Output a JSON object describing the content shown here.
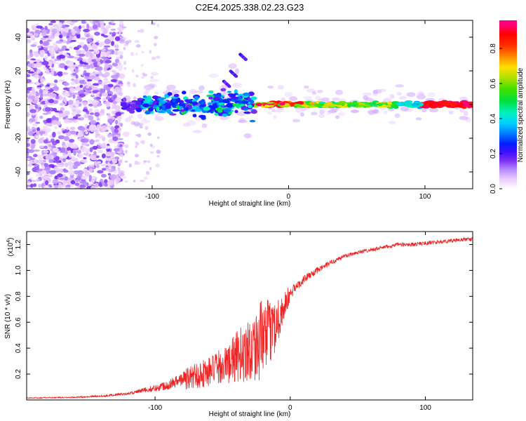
{
  "chart_data": [
    {
      "type": "heatmap",
      "title": "C2E4.2025.338.02.23.G23",
      "xlabel": "Height of straight line (km)",
      "ylabel": "Frequency (Hz)",
      "xlim": [
        -192,
        135
      ],
      "ylim": [
        -50,
        50
      ],
      "xticks": [
        "-100",
        "0",
        "100"
      ],
      "xtick_values": [
        -100,
        0,
        100
      ],
      "yticks": [
        "-40",
        "-20",
        "0",
        "20",
        "40"
      ],
      "ytick_values": [
        -40,
        -20,
        0,
        20,
        40
      ],
      "colorbar": {
        "label": "Normalized spectral amplitude",
        "range": [
          0,
          0.96
        ],
        "ticks": [
          "0.0",
          "0.2",
          "0.4",
          "0.6",
          "0.8"
        ],
        "tick_values": [
          0.0,
          0.2,
          0.4,
          0.6,
          0.8
        ],
        "colormap": [
          "#ffffff",
          "#e9c9ff",
          "#b080ff",
          "#7a2cf0",
          "#3a10ff",
          "#0020ff",
          "#0080ff",
          "#00d0ff",
          "#00f0c0",
          "#00e040",
          "#40e000",
          "#b0e000",
          "#ffe000",
          "#ff9000",
          "#ff3000",
          "#ff0000",
          "#ff0060",
          "#ff0090"
        ]
      },
      "features": [
        {
          "name": "noise region",
          "x_range": [
            -192,
            -122
          ],
          "freq_range": [
            -50,
            50
          ],
          "amplitude": 0.12
        },
        {
          "name": "signal band",
          "x_range": [
            -122,
            135
          ],
          "center_freq": 0
        },
        {
          "name": "upper streaks",
          "points": [
            [
              -45,
              12
            ],
            [
              -40,
              18
            ],
            [
              -33,
              28
            ]
          ]
        }
      ]
    },
    {
      "type": "line",
      "xlabel": "Height of straight line (km)",
      "ylabel": "SNR (10 * v/v)",
      "y_multiplier": "(x10",
      "y_multiplier_exp": "4",
      "y_multiplier_close": ")",
      "xlim": [
        -195,
        135
      ],
      "ylim": [
        0,
        1.3
      ],
      "xticks": [
        "-100",
        "0",
        "100"
      ],
      "xtick_values": [
        -100,
        0,
        100
      ],
      "yticks": [
        "0.2",
        "0.4",
        "0.6",
        "0.8",
        "1.0",
        "1.2"
      ],
      "ytick_values": [
        0.2,
        0.4,
        0.6,
        0.8,
        1.0,
        1.2
      ],
      "series": [
        {
          "name": "SNR",
          "color": "#ee2222",
          "x": [
            -195,
            -160,
            -140,
            -120,
            -110,
            -100,
            -90,
            -80,
            -70,
            -60,
            -50,
            -45,
            -40,
            -35,
            -30,
            -25,
            -20,
            -15,
            -10,
            -5,
            0,
            5,
            10,
            20,
            30,
            40,
            50,
            60,
            70,
            80,
            90,
            100,
            110,
            120,
            130,
            135
          ],
          "y": [
            0.015,
            0.02,
            0.03,
            0.05,
            0.07,
            0.09,
            0.12,
            0.16,
            0.2,
            0.23,
            0.28,
            0.3,
            0.35,
            0.38,
            0.42,
            0.46,
            0.5,
            0.55,
            0.62,
            0.72,
            0.82,
            0.88,
            0.93,
            1.0,
            1.06,
            1.11,
            1.14,
            1.16,
            1.18,
            1.2,
            1.2,
            1.21,
            1.22,
            1.23,
            1.24,
            1.24
          ],
          "spread": [
            0.008,
            0.01,
            0.015,
            0.02,
            0.04,
            0.05,
            0.08,
            0.1,
            0.13,
            0.15,
            0.17,
            0.2,
            0.25,
            0.28,
            0.32,
            0.35,
            0.4,
            0.3,
            0.25,
            0.15,
            0.1,
            0.07,
            0.06,
            0.05,
            0.04,
            0.035,
            0.03,
            0.03,
            0.03,
            0.03,
            0.03,
            0.03,
            0.03,
            0.03,
            0.03,
            0.03
          ]
        }
      ]
    }
  ]
}
